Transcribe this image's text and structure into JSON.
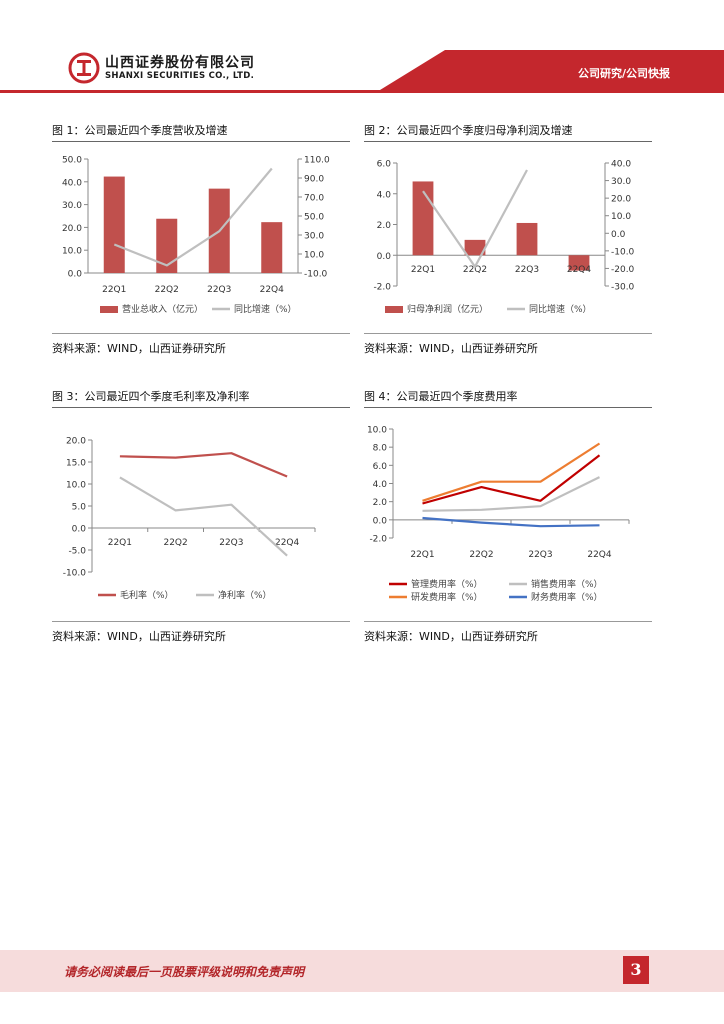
{
  "header": {
    "company_cn": "山西证券股份有限公司",
    "company_en": "SHANXI SECURITIES CO., LTD.",
    "section": "公司研究/公司快报",
    "brand_color": "#c4272d"
  },
  "figures": [
    {
      "title": "图 1：公司最近四个季度营收及增速",
      "source": "资料来源：WIND，山西证券研究所"
    },
    {
      "title": "图 2：公司最近四个季度归母净利润及增速",
      "source": "资料来源：WIND，山西证券研究所"
    },
    {
      "title": "图 3：公司最近四个季度毛利率及净利率",
      "source": "资料来源：WIND，山西证券研究所"
    },
    {
      "title": "图 4：公司最近四个季度费用率",
      "source": "资料来源：WIND，山西证券研究所"
    }
  ],
  "chart_data": [
    {
      "type": "bar+line",
      "categories": [
        "22Q1",
        "22Q2",
        "22Q3",
        "22Q4"
      ],
      "series": [
        {
          "name": "营业总收入（亿元）",
          "kind": "bar",
          "axis": "left",
          "color": "#c0504d",
          "values": [
            42.3,
            23.8,
            37.0,
            22.3
          ]
        },
        {
          "name": "同比增速（%）",
          "kind": "line",
          "axis": "right",
          "color": "#bfbfbf",
          "values": [
            20.0,
            -2.0,
            34.0,
            100.0
          ]
        }
      ],
      "left_ticks": [
        "50.0",
        "40.0",
        "30.0",
        "20.0",
        "10.0",
        "0.0"
      ],
      "right_ticks": [
        "110.0",
        "90.0",
        "70.0",
        "50.0",
        "30.0",
        "10.0",
        "-10.0"
      ],
      "ylim_left": [
        0,
        50
      ],
      "ylim_right": [
        -10,
        110
      ]
    },
    {
      "type": "bar+line",
      "categories": [
        "22Q1",
        "22Q2",
        "22Q3",
        "22Q4"
      ],
      "series": [
        {
          "name": "归母净利润（亿元）",
          "kind": "bar",
          "axis": "left",
          "color": "#c0504d",
          "values": [
            4.8,
            1.0,
            2.1,
            -1.0
          ]
        },
        {
          "name": "同比增速（%）",
          "kind": "line",
          "axis": "right",
          "color": "#bfbfbf",
          "values": [
            24.0,
            -19.0,
            36.0,
            null
          ]
        }
      ],
      "left_ticks": [
        "6.0",
        "4.0",
        "2.0",
        "0.0",
        "-2.0"
      ],
      "right_ticks": [
        "40.0",
        "30.0",
        "20.0",
        "10.0",
        "0.0",
        "-10.0",
        "-20.0",
        "-30.0"
      ],
      "ylim_left": [
        -2,
        6
      ],
      "ylim_right": [
        -30,
        40
      ]
    },
    {
      "type": "line",
      "categories": [
        "22Q1",
        "22Q2",
        "22Q3",
        "22Q4"
      ],
      "series": [
        {
          "name": "毛利率（%）",
          "color": "#c0504d",
          "values": [
            16.3,
            16.0,
            17.0,
            11.7
          ]
        },
        {
          "name": "净利率（%）",
          "color": "#bfbfbf",
          "values": [
            11.5,
            4.0,
            5.3,
            -6.3
          ]
        }
      ],
      "y_ticks": [
        "20.0",
        "15.0",
        "10.0",
        "5.0",
        "0.0",
        "-5.0",
        "-10.0"
      ],
      "ylim": [
        -10,
        20
      ]
    },
    {
      "type": "line",
      "categories": [
        "22Q1",
        "22Q2",
        "22Q3",
        "22Q4"
      ],
      "series": [
        {
          "name": "管理费用率（%）",
          "color": "#c00000",
          "values": [
            1.8,
            3.6,
            2.1,
            7.1
          ]
        },
        {
          "name": "销售费用率（%）",
          "color": "#bfbfbf",
          "values": [
            1.0,
            1.1,
            1.5,
            4.7
          ]
        },
        {
          "name": "研发费用率（%）",
          "color": "#ed7d31",
          "values": [
            2.1,
            4.2,
            4.2,
            8.4
          ]
        },
        {
          "name": "财务费用率（%）",
          "color": "#4472c4",
          "values": [
            0.2,
            -0.3,
            -0.7,
            -0.6
          ]
        }
      ],
      "y_ticks": [
        "10.0",
        "8.0",
        "6.0",
        "4.0",
        "2.0",
        "0.0",
        "-2.0"
      ],
      "ylim": [
        -2,
        10
      ]
    }
  ],
  "footer": {
    "disclaimer": "请务必阅读最后一页股票评级说明和免责声明",
    "page": "3"
  }
}
